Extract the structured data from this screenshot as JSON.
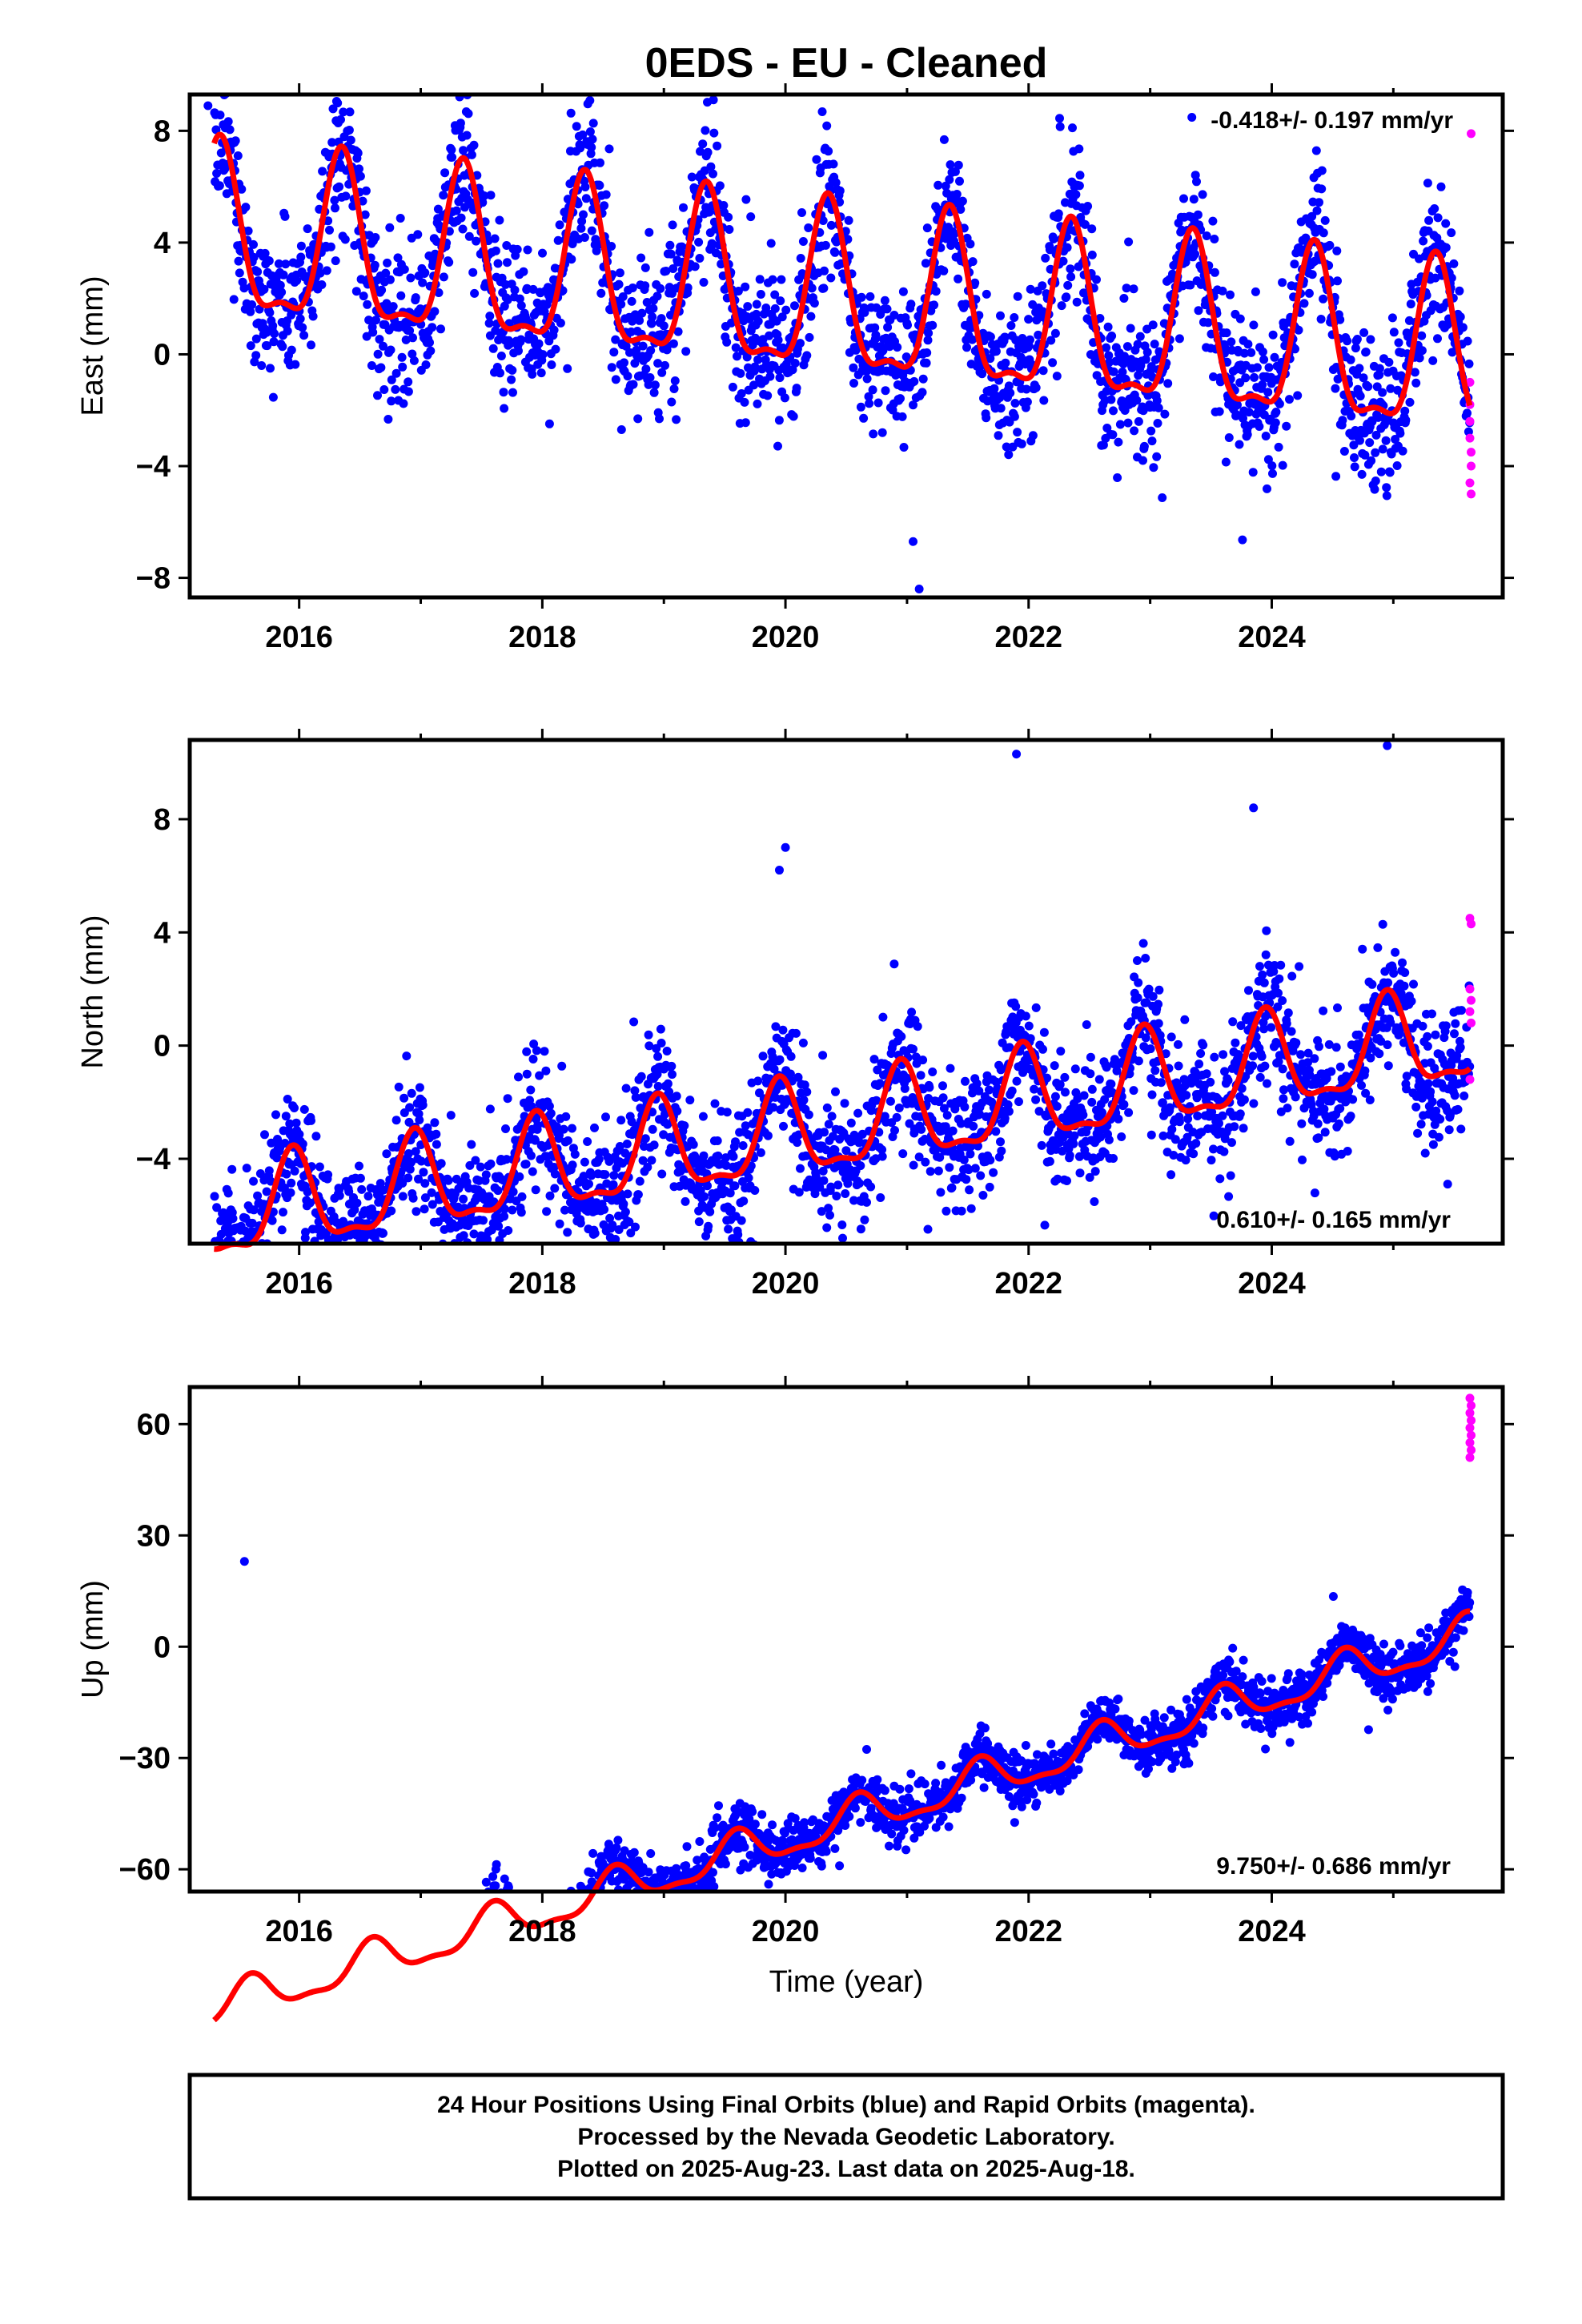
{
  "title": "0EDS  - EU - Cleaned",
  "colors": {
    "final": "#0000ff",
    "rapid": "#ff00ff",
    "fit": "#ff0000"
  },
  "xlabel": "Time (year)",
  "footer": [
    "24 Hour Positions Using Final Orbits (blue) and Rapid Orbits (magenta).",
    "Processed by the Nevada Geodetic Laboratory.",
    "Plotted on 2025-Aug-23. Last data on 2025-Aug-18."
  ],
  "chart_data": [
    {
      "type": "scatter",
      "ylabel": "East (mm)",
      "rate_text": "-0.418+/- 0.197 mm/yr",
      "xlim": [
        2015.1,
        2025.9
      ],
      "ylim": [
        -8.7,
        9.3
      ],
      "yticks": [
        -8,
        -4,
        0,
        4,
        8
      ],
      "xticks": [
        2016,
        2018,
        2020,
        2022,
        2024
      ],
      "fit": {
        "x0": 2015.3,
        "x1": 2025.63,
        "offset": 1.8,
        "trend": -0.418,
        "amp": 2.9,
        "phase": 2016.35
      },
      "noise": 1.3,
      "rapid_points": [
        [
          2025.63,
          -1.0
        ],
        [
          2025.63,
          -1.8
        ],
        [
          2025.63,
          -2.4
        ],
        [
          2025.63,
          -3.0
        ],
        [
          2025.64,
          -3.5
        ],
        [
          2025.64,
          -4.0
        ],
        [
          2025.63,
          -4.6
        ],
        [
          2025.64,
          -5.0
        ],
        [
          2025.64,
          7.9
        ]
      ],
      "outliers": [
        [
          2015.25,
          8.9
        ],
        [
          2021.1,
          -8.4
        ],
        [
          2021.05,
          -6.7
        ]
      ]
    },
    {
      "type": "scatter",
      "ylabel": "North (mm)",
      "rate_text": "0.610+/- 0.165 mm/yr",
      "xlim": [
        2015.1,
        2025.9
      ],
      "ylim": [
        -7.0,
        10.8
      ],
      "yticks": [
        -4,
        0,
        4,
        8
      ],
      "xticks": [
        2016,
        2018,
        2020,
        2022,
        2024
      ],
      "fit": {
        "x0": 2015.3,
        "x1": 2025.63,
        "offset": -2.9,
        "trend": 0.61,
        "amp": 1.6,
        "phase": 2015.95
      },
      "noise": 1.1,
      "rapid_points": [
        [
          2025.63,
          4.5
        ],
        [
          2025.64,
          4.3
        ],
        [
          2025.63,
          2.0
        ],
        [
          2025.64,
          1.6
        ],
        [
          2025.63,
          1.2
        ],
        [
          2025.64,
          0.8
        ],
        [
          2025.63,
          -1.2
        ]
      ],
      "outliers": [
        [
          2021.9,
          10.3
        ],
        [
          2024.95,
          10.6
        ],
        [
          2023.85,
          8.4
        ],
        [
          2020.0,
          7.0
        ],
        [
          2019.95,
          6.2
        ],
        [
          2016.05,
          -6.8
        ],
        [
          2018.7,
          -6.2
        ]
      ]
    },
    {
      "type": "scatter",
      "ylabel": "Up (mm)",
      "rate_text": "9.750+/- 0.686 mm/yr",
      "xlim": [
        2015.1,
        2025.9
      ],
      "ylim": [
        -66,
        70
      ],
      "yticks": [
        -60,
        -30,
        0,
        30,
        60
      ],
      "xticks": [
        2016,
        2018,
        2020,
        2022,
        2024
      ],
      "fit": {
        "x0": 2015.3,
        "x1": 2025.63,
        "offset": -47,
        "trend": 9.75,
        "amp": 5.0,
        "phase": 2015.6
      },
      "noise": 3.5,
      "rapid_points": [
        [
          2025.63,
          67
        ],
        [
          2025.64,
          65
        ],
        [
          2025.63,
          63
        ],
        [
          2025.64,
          61
        ],
        [
          2025.63,
          59
        ],
        [
          2025.64,
          57
        ],
        [
          2025.63,
          55
        ],
        [
          2025.64,
          53
        ],
        [
          2025.63,
          51
        ]
      ],
      "outliers": [
        [
          2015.55,
          23
        ]
      ]
    }
  ]
}
